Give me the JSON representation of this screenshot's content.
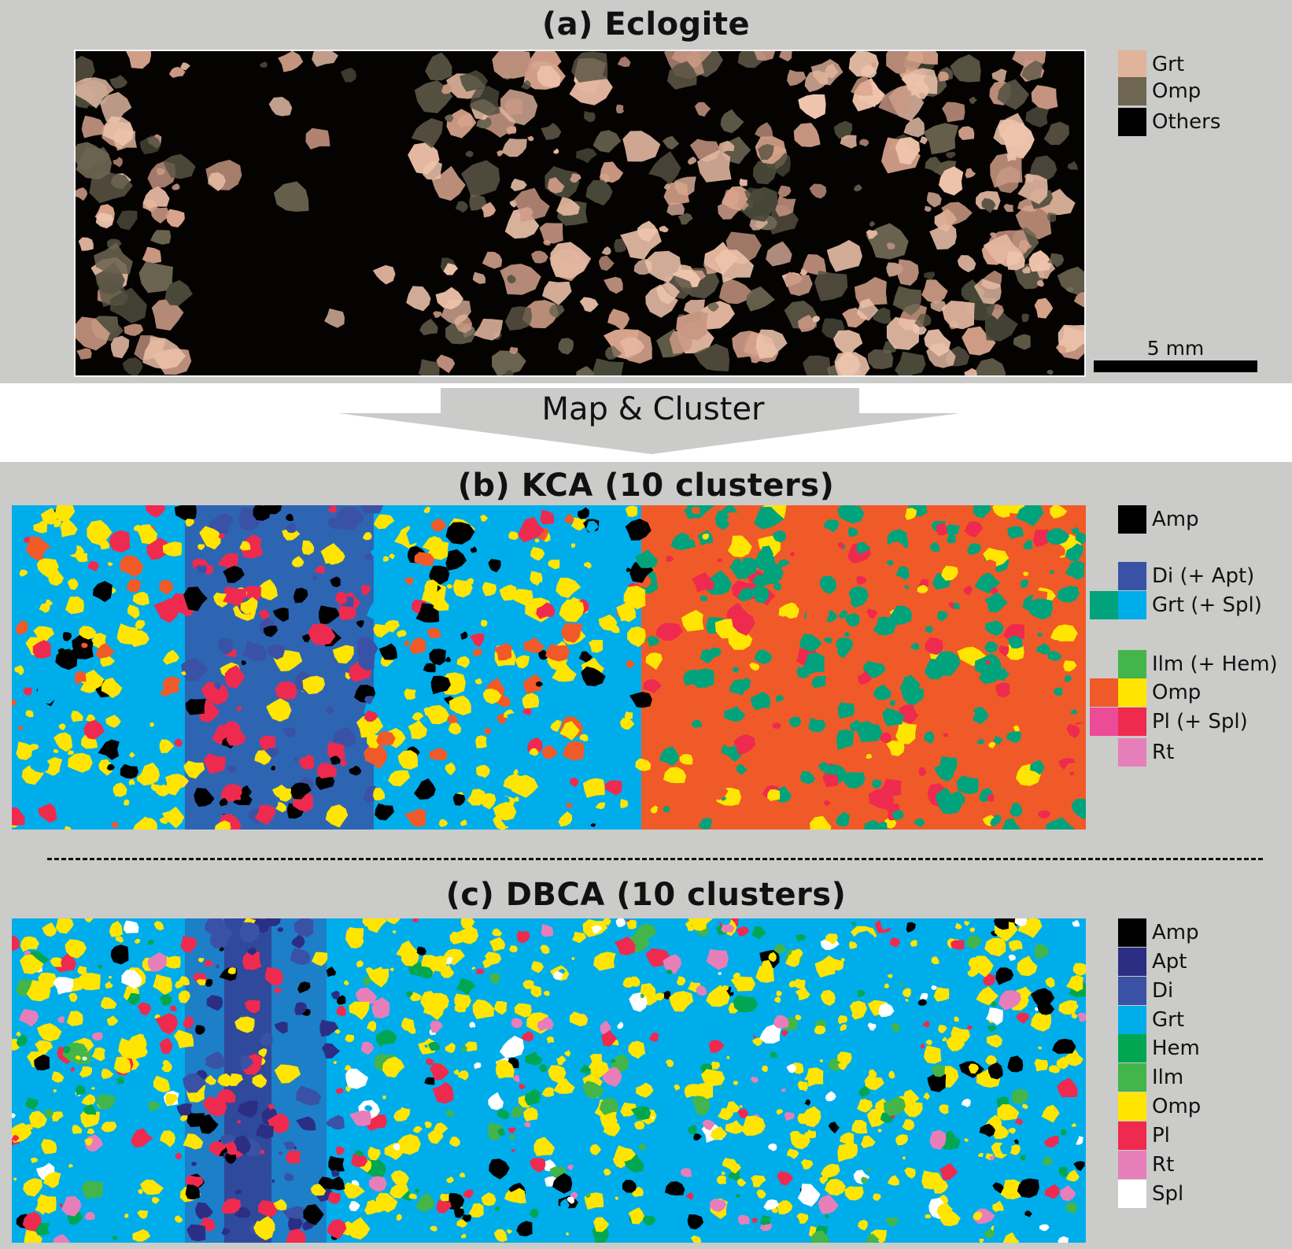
{
  "panel_a": {
    "title": "(a) Eclogite",
    "legend": [
      {
        "label": "Grt",
        "color": "#dfb49b"
      },
      {
        "label": "Omp",
        "color": "#6f6652"
      },
      {
        "label": "Others",
        "color": "#000000"
      }
    ],
    "scale_bar": "5 mm"
  },
  "arrow": {
    "label": "Map & Cluster"
  },
  "panel_b": {
    "title": "(b) KCA (10 clusters)",
    "legend": [
      {
        "label": "Amp",
        "color": "#000000",
        "extra": null
      },
      {
        "label": "Di (+ Apt)",
        "color": "#3a52a5",
        "extra": null
      },
      {
        "label": "Grt (+ Spl)",
        "color": "#00adeb",
        "extra": "#00a37c"
      },
      {
        "label": "Ilm (+ Hem)",
        "color": "#43b54a",
        "extra": null
      },
      {
        "label": "Omp",
        "color": "#ffe500",
        "extra": "#f05a28"
      },
      {
        "label": "Pl (+ Spl)",
        "color": "#ee2a4f",
        "extra": "#ec4b98"
      },
      {
        "label": "Rt",
        "color": "#e67fb9",
        "extra": null
      }
    ]
  },
  "panel_c": {
    "title": "(c) DBCA (10 clusters)",
    "legend": [
      {
        "label": "Amp",
        "color": "#000000"
      },
      {
        "label": "Apt",
        "color": "#2b2e83"
      },
      {
        "label": "Di",
        "color": "#3a52a5"
      },
      {
        "label": "Grt",
        "color": "#00adeb"
      },
      {
        "label": "Hem",
        "color": "#00a651"
      },
      {
        "label": "Ilm",
        "color": "#43b54a"
      },
      {
        "label": "Omp",
        "color": "#ffe500"
      },
      {
        "label": "Pl",
        "color": "#ee2a4f"
      },
      {
        "label": "Rt",
        "color": "#e67fb9"
      },
      {
        "label": "Spl",
        "color": "#ffffff"
      }
    ]
  }
}
